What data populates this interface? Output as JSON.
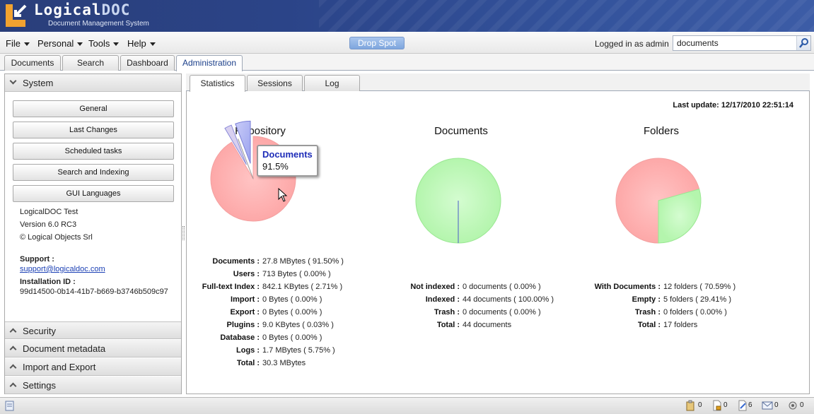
{
  "app": {
    "logo_main": "Logical",
    "logo_accent": "DOC",
    "logo_subtitle": "Document Management System"
  },
  "menubar": {
    "items": [
      "File",
      "Personal",
      "Tools",
      "Help"
    ],
    "drop_spot": "Drop Spot",
    "logged_in": "Logged in as admin",
    "search_value": "documents"
  },
  "main_tabs": [
    "Documents",
    "Search",
    "Dashboard",
    "Administration"
  ],
  "sidebar": {
    "system_header": "System",
    "buttons": [
      "General",
      "Last Changes",
      "Scheduled tasks",
      "Search and Indexing",
      "GUI Languages"
    ],
    "product": "LogicalDOC Test",
    "version": "Version 6.0 RC3",
    "copyright": "© Logical Objects Srl",
    "support_label": "Support :",
    "support_email": "support@logicaldoc.com",
    "installation_label": "Installation ID :",
    "installation_id": "99d14500-0b14-41b7-b669-b3746b509c97",
    "sections": [
      "Security",
      "Document metadata",
      "Import and Export",
      "Settings"
    ]
  },
  "sub_tabs": [
    "Statistics",
    "Sessions",
    "Log"
  ],
  "last_update": "Last update: 12/17/2010 22:51:14",
  "tooltip": {
    "title": "Documents",
    "value": "91.5%"
  },
  "charts": {
    "repository": {
      "title": "Repository",
      "rows": [
        {
          "label": "Documents :",
          "value": "27.8 MBytes ( 91.50% )"
        },
        {
          "label": "Users :",
          "value": "713 Bytes ( 0.00% )"
        },
        {
          "label": "Full-text Index :",
          "value": "842.1 KBytes ( 2.71% )"
        },
        {
          "label": "Import :",
          "value": "0 Bytes ( 0.00% )"
        },
        {
          "label": "Export :",
          "value": "0 Bytes ( 0.00% )"
        },
        {
          "label": "Plugins :",
          "value": "9.0 KBytes ( 0.03% )"
        },
        {
          "label": "Database :",
          "value": "0 Bytes ( 0.00% )"
        },
        {
          "label": "Logs :",
          "value": "1.7 MBytes ( 5.75% )"
        },
        {
          "label": "Total :",
          "value": "30.3 MBytes"
        }
      ]
    },
    "documents": {
      "title": "Documents",
      "rows": [
        {
          "label": "Not indexed :",
          "value": "0 documents ( 0.00% )"
        },
        {
          "label": "Indexed :",
          "value": "44 documents ( 100.00% )"
        },
        {
          "label": "Trash :",
          "value": "0 documents ( 0.00% )"
        },
        {
          "label": "Total :",
          "value": "44 documents"
        }
      ]
    },
    "folders": {
      "title": "Folders",
      "rows": [
        {
          "label": "With Documents :",
          "value": "12 folders ( 70.59% )"
        },
        {
          "label": "Empty :",
          "value": "5 folders ( 29.41% )"
        },
        {
          "label": "Trash :",
          "value": "0 folders ( 0.00% )"
        },
        {
          "label": "Total :",
          "value": "17 folders"
        }
      ]
    }
  },
  "chart_data": [
    {
      "type": "pie",
      "title": "Repository",
      "categories": [
        "Documents",
        "Users",
        "Full-text Index",
        "Import",
        "Export",
        "Plugins",
        "Database",
        "Logs"
      ],
      "values": [
        91.5,
        0.0,
        2.71,
        0.0,
        0.0,
        0.03,
        0.0,
        5.75
      ]
    },
    {
      "type": "pie",
      "title": "Documents",
      "categories": [
        "Not indexed",
        "Indexed",
        "Trash"
      ],
      "values": [
        0.0,
        100.0,
        0.0
      ]
    },
    {
      "type": "pie",
      "title": "Folders",
      "categories": [
        "With Documents",
        "Empty",
        "Trash"
      ],
      "values": [
        70.59,
        29.41,
        0.0
      ]
    }
  ],
  "footer": {
    "counts": [
      "0",
      "0",
      "6",
      "0",
      "0"
    ]
  }
}
